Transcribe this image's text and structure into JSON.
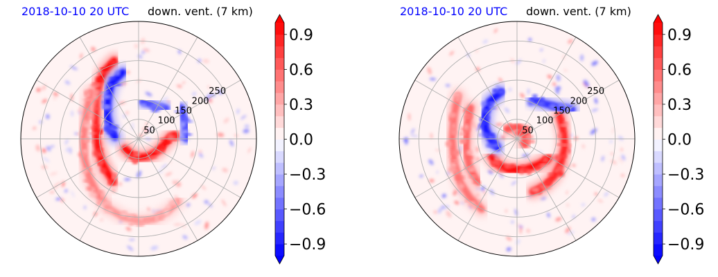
{
  "chart_data": [
    {
      "type": "heatmap",
      "title_left": "2018-10-10 20 UTC",
      "title_right": "down. vent. (7 km)",
      "radial_ticks": [
        50,
        100,
        150,
        200,
        250
      ],
      "rmax": 300,
      "grid": true,
      "colorbar": {
        "ticks": [
          "0.9",
          "0.6",
          "0.3",
          "0.0",
          "−0.3",
          "−0.6",
          "−0.9"
        ],
        "tick_values": [
          0.9,
          0.6,
          0.3,
          0.0,
          -0.3,
          -0.6,
          -0.9
        ],
        "range": [
          -1.0,
          1.0
        ],
        "extend": "both"
      },
      "features": [
        {
          "sign": "positive",
          "shape": "band",
          "points": [
            [
              -62,
              200
            ],
            [
              -85,
              175
            ],
            [
              -102,
              140
            ],
            [
              -108,
              100
            ],
            [
              -110,
              60
            ],
            [
              -110,
              20
            ],
            [
              -105,
              -20
            ],
            [
              -95,
              -55
            ],
            [
              -80,
              -85
            ],
            [
              -65,
              -108
            ]
          ],
          "intensity": 0.95
        },
        {
          "sign": "positive",
          "shape": "band",
          "points": [
            [
              -122,
              120
            ],
            [
              -132,
              70
            ],
            [
              -140,
              10
            ],
            [
              -138,
              -50
            ],
            [
              -125,
              -100
            ],
            [
              -105,
              -140
            ],
            [
              -80,
              -170
            ]
          ],
          "intensity": 0.5
        },
        {
          "sign": "positive",
          "shape": "band",
          "points": [
            [
              -80,
              -175
            ],
            [
              -40,
              -200
            ],
            [
              0,
              -210
            ],
            [
              40,
              -205
            ],
            [
              75,
              -185
            ],
            [
              100,
              -160
            ]
          ],
          "intensity": 0.4
        },
        {
          "sign": "positive",
          "shape": "band",
          "points": [
            [
              -35,
              -25
            ],
            [
              -8,
              -48
            ],
            [
              25,
              -45
            ],
            [
              50,
              -30
            ],
            [
              68,
              -10
            ],
            [
              80,
              5
            ],
            [
              92,
              10
            ]
          ],
          "intensity": 0.95
        },
        {
          "sign": "negative",
          "shape": "band",
          "points": [
            [
              -40,
              170
            ],
            [
              -70,
              140
            ],
            [
              -78,
              100
            ],
            [
              -80,
              60
            ],
            [
              -72,
              25
            ],
            [
              -60,
              5
            ]
          ],
          "intensity": 0.9
        },
        {
          "sign": "negative",
          "shape": "band",
          "points": [
            [
              10,
              95
            ],
            [
              40,
              85
            ],
            [
              70,
              78
            ]
          ],
          "intensity": 0.7
        },
        {
          "sign": "negative",
          "shape": "band",
          "points": [
            [
              108,
              80
            ],
            [
              118,
              40
            ],
            [
              122,
              0
            ]
          ],
          "intensity": 0.7
        }
      ]
    },
    {
      "type": "heatmap",
      "title_left": "2018-10-10 20 UTC",
      "title_right": "down. vent. (7 km)",
      "radial_ticks": [
        50,
        100,
        150,
        200,
        250
      ],
      "rmax": 300,
      "grid": true,
      "colorbar": {
        "ticks": [
          "0.9",
          "0.6",
          "0.3",
          "0.0",
          "−0.3",
          "−0.6",
          "−0.9"
        ],
        "tick_values": [
          0.9,
          0.6,
          0.3,
          0.0,
          -0.3,
          -0.6,
          -0.9
        ],
        "range": [
          -1.0,
          1.0
        ],
        "extend": "both"
      },
      "features": [
        {
          "sign": "positive",
          "shape": "band",
          "points": [
            [
              -150,
              110
            ],
            [
              -160,
              60
            ],
            [
              -165,
              0
            ],
            [
              -160,
              -60
            ],
            [
              -145,
              -110
            ],
            [
              -120,
              -150
            ],
            [
              -90,
              -180
            ]
          ],
          "intensity": 0.55
        },
        {
          "sign": "positive",
          "shape": "band",
          "points": [
            [
              -118,
              80
            ],
            [
              -128,
              30
            ],
            [
              -130,
              -25
            ],
            [
              -120,
              -75
            ],
            [
              -100,
              -110
            ]
          ],
          "intensity": 0.6
        },
        {
          "sign": "positive",
          "shape": "band",
          "points": [
            [
              -65,
              -45
            ],
            [
              -50,
              -65
            ],
            [
              -20,
              -80
            ],
            [
              20,
              -78
            ],
            [
              55,
              -65
            ],
            [
              82,
              -50
            ]
          ],
          "intensity": 0.95
        },
        {
          "sign": "positive",
          "shape": "band",
          "points": [
            [
              108,
              60
            ],
            [
              118,
              20
            ],
            [
              122,
              -20
            ],
            [
              112,
              -60
            ],
            [
              95,
              -95
            ],
            [
              70,
              -120
            ],
            [
              40,
              -135
            ]
          ],
          "intensity": 0.85
        },
        {
          "sign": "positive",
          "shape": "band",
          "points": [
            [
              -25,
              25
            ],
            [
              5,
              30
            ],
            [
              25,
              10
            ],
            [
              20,
              -15
            ]
          ],
          "intensity": 0.7
        },
        {
          "sign": "negative",
          "shape": "band",
          "points": [
            [
              -40,
              120
            ],
            [
              -70,
              95
            ],
            [
              -82,
              60
            ],
            [
              -80,
              25
            ],
            [
              -65,
              -5
            ],
            [
              -50,
              -22
            ]
          ],
          "intensity": 0.9
        },
        {
          "sign": "negative",
          "shape": "band",
          "points": [
            [
              40,
              100
            ],
            [
              70,
              90
            ],
            [
              110,
              80
            ],
            [
              140,
              75
            ]
          ],
          "intensity": 0.8
        }
      ]
    }
  ]
}
